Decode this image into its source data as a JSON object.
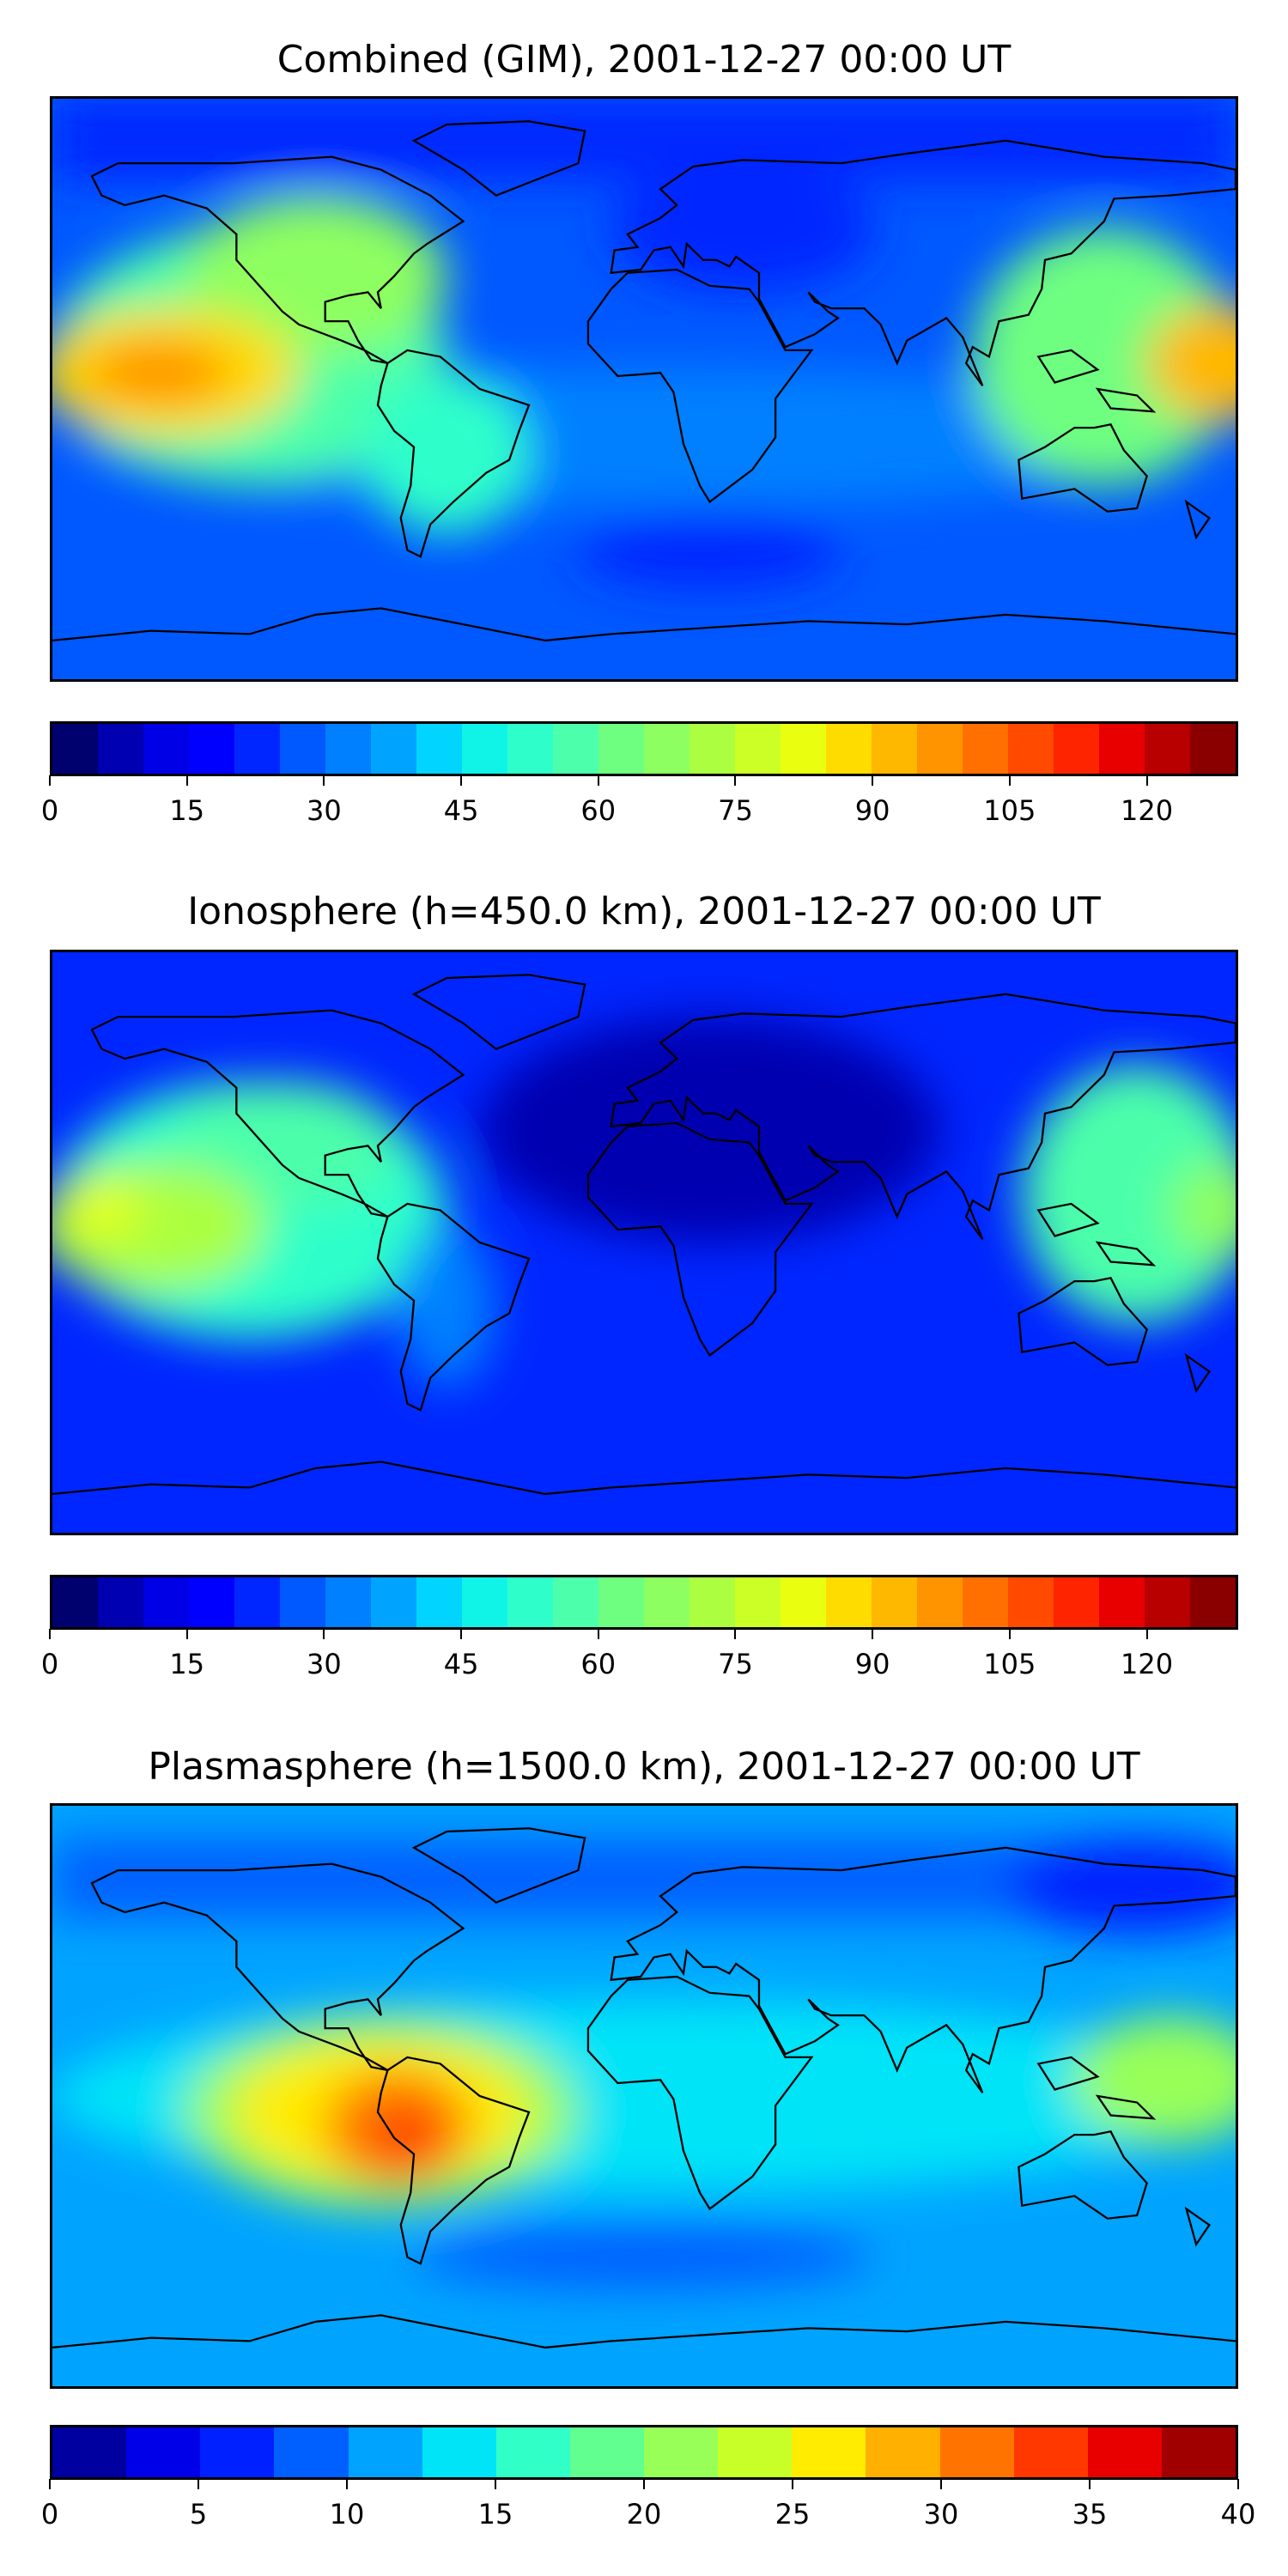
{
  "chart_data": [
    {
      "type": "heatmap",
      "title": "Combined (GIM), 2001-12-27 00:00 UT",
      "projection": "equirectangular, lon -180..180, lat -90..90",
      "colorbar": {
        "min": 0,
        "max": 130,
        "step": 5,
        "ticks": [
          "0",
          "15",
          "30",
          "45",
          "60",
          "75",
          "90",
          "105",
          "120"
        ],
        "tick_values": [
          0,
          15,
          30,
          45,
          60,
          75,
          90,
          105,
          120
        ],
        "colors": [
          "#00006e",
          "#0000b0",
          "#0000e6",
          "#0000ff",
          "#0026ff",
          "#0058ff",
          "#0080ff",
          "#00a4ff",
          "#00d4ff",
          "#10f4e8",
          "#2effca",
          "#4cffaa",
          "#6eff80",
          "#8eff60",
          "#acff40",
          "#ccff26",
          "#eaff10",
          "#ffdc00",
          "#ffb800",
          "#ff9400",
          "#ff7000",
          "#ff4a00",
          "#ff2400",
          "#e80000",
          "#b80000",
          "#8a0000"
        ]
      },
      "base_value": 25,
      "features": [
        {
          "lon": -150,
          "lat": 5,
          "value": 95,
          "note": "Pacific maximum"
        },
        {
          "lon": 175,
          "lat": 8,
          "value": 95,
          "note": "West Pacific maximum"
        },
        {
          "lon": -100,
          "lat": 35,
          "value": 65
        },
        {
          "lon": -60,
          "lat": -20,
          "value": 60
        },
        {
          "lon": 130,
          "lat": 20,
          "value": 65
        },
        {
          "lon": 30,
          "lat": 45,
          "value": 15
        },
        {
          "lon": 20,
          "lat": -45,
          "value": 15
        }
      ]
    },
    {
      "type": "heatmap",
      "title": "Ionosphere  (h=450.0 km), 2001-12-27 00:00 UT",
      "projection": "equirectangular, lon -180..180, lat -90..90",
      "colorbar": {
        "min": 0,
        "max": 130,
        "step": 5,
        "ticks": [
          "0",
          "15",
          "30",
          "45",
          "60",
          "75",
          "90",
          "105",
          "120"
        ],
        "tick_values": [
          0,
          15,
          30,
          45,
          60,
          75,
          90,
          105,
          120
        ],
        "colors": [
          "#00006e",
          "#0000b0",
          "#0000e6",
          "#0000ff",
          "#0026ff",
          "#0058ff",
          "#0080ff",
          "#00a4ff",
          "#00d4ff",
          "#10f4e8",
          "#2effca",
          "#4cffaa",
          "#6eff80",
          "#8eff60",
          "#acff40",
          "#ccff26",
          "#eaff10",
          "#ffdc00",
          "#ffb800",
          "#ff9400",
          "#ff7000",
          "#ff4a00",
          "#ff2400",
          "#e80000",
          "#b80000",
          "#8a0000"
        ]
      },
      "base_value": 18,
      "features": [
        {
          "lon": -165,
          "lat": 5,
          "value": 80,
          "note": "Pacific maximum"
        },
        {
          "lon": 175,
          "lat": 10,
          "value": 75
        },
        {
          "lon": -110,
          "lat": 30,
          "value": 55
        },
        {
          "lon": 10,
          "lat": 40,
          "value": 3
        },
        {
          "lon": 40,
          "lat": 0,
          "value": 5
        }
      ]
    },
    {
      "type": "heatmap",
      "title": "Plasmasphere (h=1500.0 km), 2001-12-27 00:00 UT",
      "projection": "equirectangular, lon -180..180, lat -90..90",
      "colorbar": {
        "min": 0,
        "max": 40,
        "step": 2.5,
        "ticks": [
          "0",
          "5",
          "10",
          "15",
          "20",
          "25",
          "30",
          "35",
          "40"
        ],
        "tick_values": [
          0,
          5,
          10,
          15,
          20,
          25,
          30,
          35,
          40
        ],
        "colors": [
          "#0000a0",
          "#0000e8",
          "#0020ff",
          "#0060ff",
          "#00a4ff",
          "#00e4f8",
          "#30ffc8",
          "#60ff90",
          "#98ff58",
          "#c8ff28",
          "#ffec00",
          "#ffb000",
          "#ff7400",
          "#ff3800",
          "#e80000",
          "#a00000"
        ]
      },
      "base_value": 12,
      "features": [
        {
          "lon": -75,
          "lat": -15,
          "value": 36,
          "note": "South America maximum"
        },
        {
          "lon": -160,
          "lat": -5,
          "value": 26
        },
        {
          "lon": 160,
          "lat": 0,
          "value": 20
        },
        {
          "lon": 150,
          "lat": 60,
          "value": 3
        },
        {
          "lon": -150,
          "lat": 55,
          "value": 5
        }
      ]
    }
  ]
}
